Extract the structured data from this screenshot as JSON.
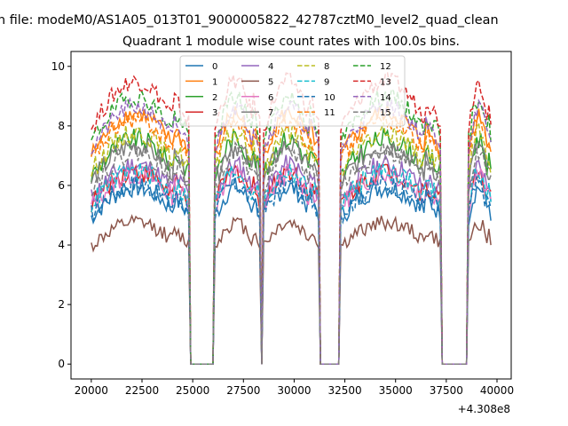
{
  "figure": {
    "suptitle": "n file: modeM0/AS1A05_013T01_9000005822_42787cztM0_level2_quad_clean",
    "offset_label": "+4.308e8"
  },
  "chart_data": {
    "type": "line",
    "title": "Quadrant 1 module wise count rates with 100.0s bins.",
    "xlabel": "",
    "ylabel": "",
    "xlim": [
      19000,
      40700
    ],
    "ylim": [
      -0.5,
      10.5
    ],
    "x_offset": 430800000,
    "xticks": [
      20000,
      22500,
      25000,
      27500,
      30000,
      32500,
      35000,
      37500,
      40000
    ],
    "xtick_labels": [
      "20000",
      "22500",
      "25000",
      "27500",
      "30000",
      "32500",
      "35000",
      "37500",
      "40000"
    ],
    "yticks": [
      0,
      2,
      4,
      6,
      8,
      10
    ],
    "ytick_labels": [
      "0",
      "2",
      "4",
      "6",
      "8",
      "10"
    ],
    "grid": false,
    "legend": {
      "placement": "top-center",
      "columns": 4
    },
    "x_start": 20000,
    "x_end": 39700,
    "bin": 100,
    "off_intervals": [
      [
        24900,
        26000
      ],
      [
        28400,
        28400
      ],
      [
        31300,
        32200
      ],
      [
        37300,
        38500
      ]
    ],
    "series": [
      {
        "name": "0",
        "color": "#1f77b4",
        "dash": "solid",
        "base": 5.5,
        "noise": 0.35
      },
      {
        "name": "1",
        "color": "#ff7f0e",
        "dash": "solid",
        "base": 7.8,
        "noise": 0.3
      },
      {
        "name": "2",
        "color": "#2ca02c",
        "dash": "solid",
        "base": 7.0,
        "noise": 0.35
      },
      {
        "name": "3",
        "color": "#d62728",
        "dash": "solid",
        "base": 6.0,
        "noise": 0.35
      },
      {
        "name": "4",
        "color": "#9467bd",
        "dash": "solid",
        "base": 6.2,
        "noise": 0.35
      },
      {
        "name": "5",
        "color": "#8c564b",
        "dash": "solid",
        "base": 4.4,
        "noise": 0.25
      },
      {
        "name": "6",
        "color": "#e377c2",
        "dash": "solid",
        "base": 5.9,
        "noise": 0.35
      },
      {
        "name": "7",
        "color": "#7f7f7f",
        "dash": "solid",
        "base": 6.8,
        "noise": 0.35
      },
      {
        "name": "8",
        "color": "#bcbd22",
        "dash": "dashed",
        "base": 7.2,
        "noise": 0.35
      },
      {
        "name": "9",
        "color": "#17becf",
        "dash": "dashed",
        "base": 6.0,
        "noise": 0.35
      },
      {
        "name": "10",
        "color": "#1f77b4",
        "dash": "dashed",
        "base": 5.6,
        "noise": 0.35
      },
      {
        "name": "11",
        "color": "#ff7f0e",
        "dash": "dashed",
        "base": 7.6,
        "noise": 0.3
      },
      {
        "name": "12",
        "color": "#2ca02c",
        "dash": "dashed",
        "base": 8.3,
        "noise": 0.3
      },
      {
        "name": "13",
        "color": "#d62728",
        "dash": "dashed",
        "base": 8.8,
        "noise": 0.3
      },
      {
        "name": "14",
        "color": "#9467bd",
        "dash": "dashed",
        "base": 8.0,
        "noise": 0.3
      },
      {
        "name": "15",
        "color": "#7f7f7f",
        "dash": "dashed",
        "base": 6.6,
        "noise": 0.35
      }
    ]
  }
}
